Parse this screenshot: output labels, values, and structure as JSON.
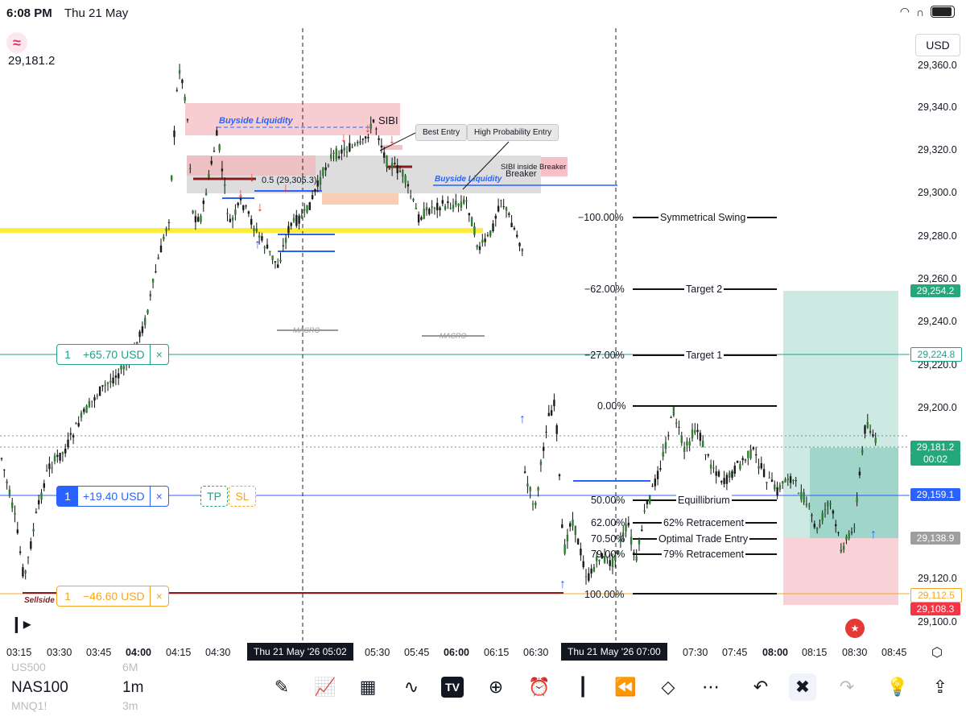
{
  "status": {
    "time": "6:08 PM",
    "date": "Thu 21 May"
  },
  "symbol": {
    "icon": "≈",
    "last_price": "29,181.2",
    "currency": "USD"
  },
  "price_axis": [
    "29,360.0",
    "29,340.0",
    "29,320.0",
    "29,300.0",
    "29,280.0",
    "29,260.0",
    "29,240.0",
    "29,220.0",
    "29,200.0",
    "29,120.0",
    "29,100.0"
  ],
  "price_tags": [
    {
      "text": "29,254.2",
      "color": "#22a87a"
    },
    {
      "text": "29,224.8",
      "color": "#ffffff"
    },
    {
      "text": "29,181.2",
      "color": "#22a87a"
    },
    {
      "text": "00:02",
      "color": "#22a87a"
    },
    {
      "text": "29,159.1",
      "color": "#2962ff"
    },
    {
      "text": "29,138.9",
      "color": "#9e9e9e"
    },
    {
      "text": "29,112.5",
      "color": "#ffffff"
    },
    {
      "text": "29,108.3",
      "color": "#f23645"
    }
  ],
  "positions": [
    {
      "qty": "1",
      "pnl": "+65.70 USD",
      "close": "×",
      "color": "#22a08a"
    },
    {
      "qty": "1",
      "pnl": "+19.40 USD",
      "close": "×",
      "color": "#2962ff",
      "tp": "TP",
      "sl": "SL"
    },
    {
      "qty": "1",
      "pnl": "−46.60 USD",
      "close": "×",
      "color": "#f5a623"
    }
  ],
  "fib_levels": [
    {
      "pct": "−100.00%",
      "name": "Symmetrical Swing"
    },
    {
      "pct": "−62.00%",
      "name": "Target 2"
    },
    {
      "pct": "−27.00%",
      "name": "Target 1"
    },
    {
      "pct": "0.00%",
      "name": ""
    },
    {
      "pct": "50.00%",
      "name": "Equillibrium"
    },
    {
      "pct": "62.00%",
      "name": "62% Retracement"
    },
    {
      "pct": "70.50%",
      "name": "Optimal Trade Entry"
    },
    {
      "pct": "79.00%",
      "name": "79% Retracement"
    },
    {
      "pct": "100.00%",
      "name": ""
    }
  ],
  "annotations": {
    "buyside1": "Buyside Liquidity",
    "buyside2": "Buyside Liquidity",
    "sibi": "SIBI",
    "best_entry": "Best Entry",
    "high_prob": "High Probability Entry",
    "sibi_breaker": "SIBI inside Breaker",
    "breaker": "Breaker",
    "half_level": "0.5 (29,305.3)",
    "macro1": "MACRO",
    "macro2": "MACRO",
    "sellside": "Sellside"
  },
  "time_axis": [
    "03:15",
    "03:30",
    "03:45",
    "04:00",
    "04:15",
    "04:30",
    "05:30",
    "05:45",
    "06:00",
    "06:15",
    "06:30",
    "07:30",
    "07:45",
    "08:00",
    "08:15",
    "08:30",
    "08:45"
  ],
  "crosshair_times": [
    "Thu 21 May '26  05:02",
    "Thu 21 May '26  07:00"
  ],
  "bottom": {
    "symbol": "NAS100",
    "symbol_above": "US500",
    "symbol_below": "MNQ1!",
    "timeframe": "1m",
    "tf_above": "6M",
    "tf_below": "3m",
    "tools": [
      "pen-icon",
      "indicators-icon",
      "layouts-icon",
      "trend-icon",
      "tradingview-icon",
      "add-icon",
      "alarm-icon",
      "candles-icon",
      "replay-icon",
      "layers-icon",
      "more-icon",
      "undo-icon",
      "fullscreen-icon",
      "redo-icon",
      "ideas-icon",
      "share-icon"
    ]
  }
}
